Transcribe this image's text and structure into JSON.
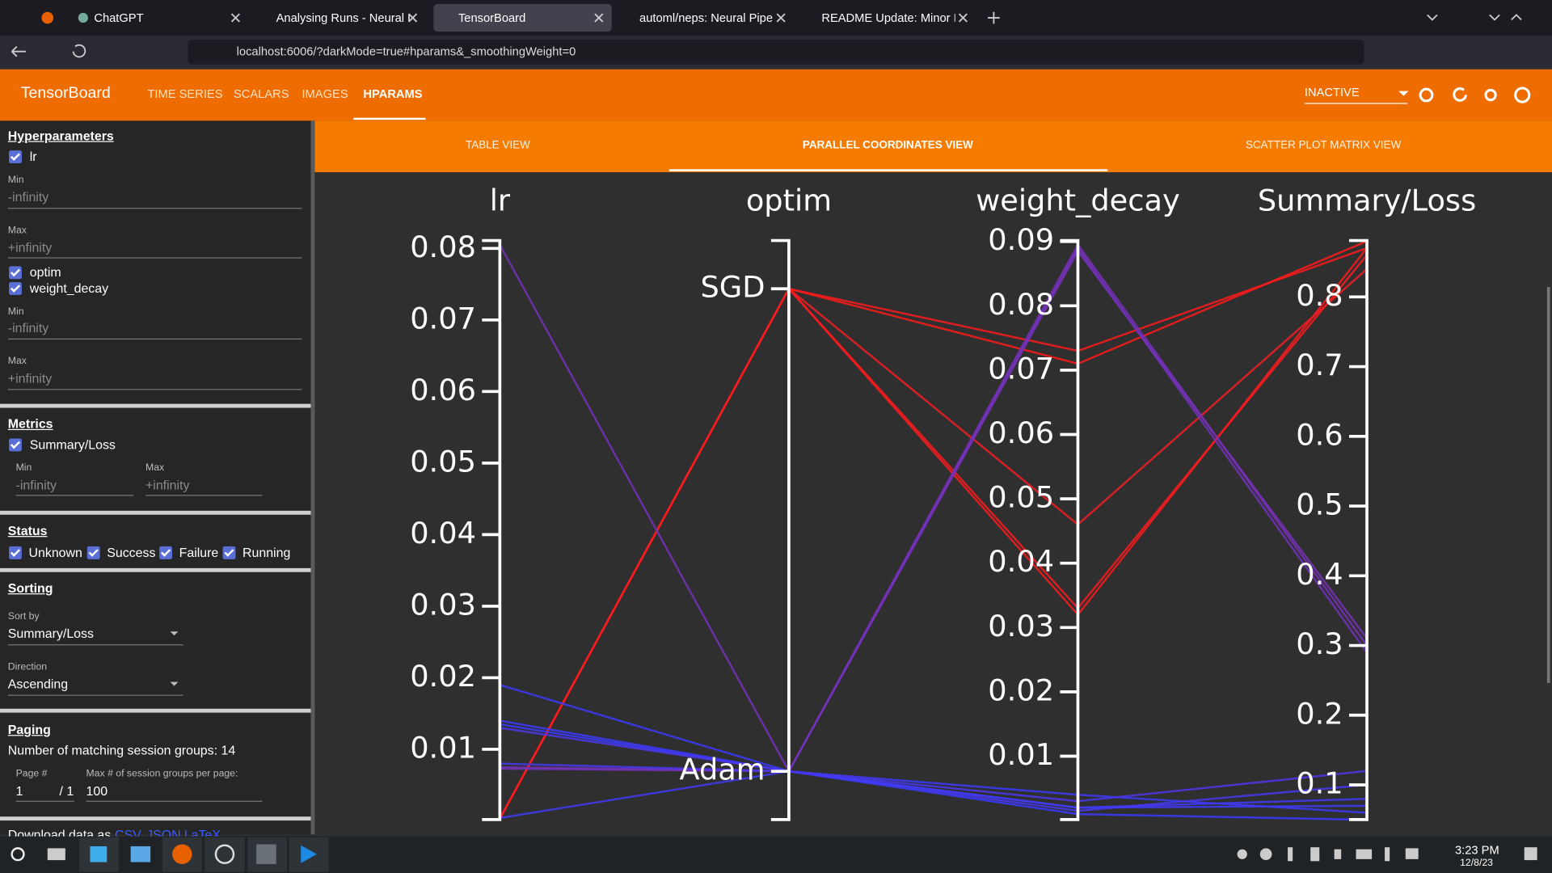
{
  "browser": {
    "tabs": [
      "ChatGPT",
      "Analysing Runs - Neural Pi",
      "TensorBoard",
      "automl/neps: Neural Pipeli",
      "README Update: Minor Fo"
    ],
    "url": "localhost:6006/?darkMode=true#hparams&_smoothingWeight=0"
  },
  "header": {
    "brand": "TensorBoard",
    "nav": [
      "TIME SERIES",
      "SCALARS",
      "IMAGES",
      "HPARAMS"
    ],
    "status": "INACTIVE"
  },
  "views": [
    "TABLE VIEW",
    "PARALLEL COORDINATES VIEW",
    "SCATTER PLOT MATRIX VIEW"
  ],
  "sidebar": {
    "hyperparameters": {
      "title": "Hyperparameters",
      "items": [
        {
          "name": "lr",
          "min_label": "Min",
          "min": "-infinity",
          "max_label": "Max",
          "max": "+infinity"
        },
        {
          "name": "optim"
        },
        {
          "name": "weight_decay",
          "min_label": "Min",
          "min": "-infinity",
          "max_label": "Max",
          "max": "+infinity"
        }
      ]
    },
    "metrics": {
      "title": "Metrics",
      "items": [
        {
          "name": "Summary/Loss",
          "min_label": "Min",
          "min": "-infinity",
          "max_label": "Max",
          "max": "+infinity"
        }
      ]
    },
    "status": {
      "title": "Status",
      "items": [
        "Unknown",
        "Success",
        "Failure",
        "Running"
      ]
    },
    "sorting": {
      "title": "Sorting",
      "sort_by_label": "Sort by",
      "sort_by": "Summary/Loss",
      "direction_label": "Direction",
      "direction": "Ascending"
    },
    "paging": {
      "title": "Paging",
      "count_text": "Number of matching session groups: 14",
      "page_label": "Page #",
      "page": 1,
      "page_total": "/ 1",
      "per_page_label": "Max # of session groups per page:",
      "per_page": 100
    },
    "download": {
      "label": "Download data as",
      "links": [
        "CSV",
        "JSON",
        "LaTeX"
      ]
    }
  },
  "chart_data": {
    "type": "parallel_coordinates",
    "axes": [
      {
        "name": "lr",
        "ylim": [
          0.00018,
          0.0811
        ],
        "yticks": [
          0.01,
          0.02,
          0.03,
          0.04,
          0.05,
          0.06,
          0.07,
          0.08
        ]
      },
      {
        "name": "optim",
        "categories": [
          "SGD",
          "Adam"
        ]
      },
      {
        "name": "weight_decay",
        "ylim": [
          0.00015,
          0.09015
        ],
        "yticks": [
          0.01,
          0.02,
          0.03,
          0.04,
          0.05,
          0.06,
          0.07,
          0.08,
          0.09
        ]
      },
      {
        "name": "Summary/Loss",
        "ylim": [
          0.0503,
          0.8809
        ],
        "yticks": [
          0.1,
          0.2,
          0.3,
          0.4,
          0.5,
          0.6,
          0.7,
          0.8
        ]
      }
    ],
    "color_scale": [
      "#3a3aff",
      "#ff1a1a"
    ],
    "sessions": [
      [
        0.0003,
        "SGD",
        0.073,
        0.87
      ],
      [
        0.0003,
        "SGD",
        0.071,
        0.88
      ],
      [
        0.0003,
        "SGD",
        0.046,
        0.84
      ],
      [
        0.0003,
        "SGD",
        0.033,
        0.86
      ],
      [
        0.0003,
        "SGD",
        0.032,
        0.87
      ],
      [
        0.0805,
        "Adam",
        0.0895,
        0.3
      ],
      [
        0.0075,
        "Adam",
        0.0885,
        0.31
      ],
      [
        0.0073,
        "Adam",
        0.089,
        0.29
      ],
      [
        0.019,
        "Adam",
        0.004,
        0.06
      ],
      [
        0.014,
        "Adam",
        0.002,
        0.07
      ],
      [
        0.0135,
        "Adam",
        0.001,
        0.05
      ],
      [
        0.013,
        "Adam",
        0.003,
        0.12
      ],
      [
        0.008,
        "Adam",
        0.0015,
        0.1
      ],
      [
        0.0004,
        "Adam",
        0.002,
        0.08
      ]
    ]
  },
  "taskbar": {
    "time": "3:23 PM",
    "date": "12/8/23"
  }
}
